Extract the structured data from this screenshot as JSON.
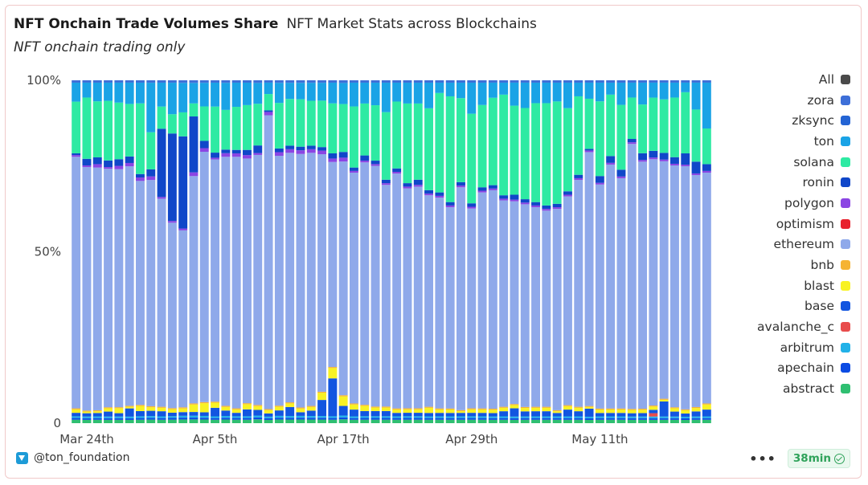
{
  "header": {
    "title": "NFT Onchain Trade Volumes Share",
    "subtitle": "NFT Market Stats across Blockchains",
    "note": "NFT onchain trading only"
  },
  "footer": {
    "handle": "@ton_foundation",
    "menu": "•••",
    "age": "38min"
  },
  "legend": [
    {
      "label": "All",
      "color": "#4a4a4a"
    },
    {
      "label": "zora",
      "color": "#3d6fd8"
    },
    {
      "label": "zksync",
      "color": "#2464d4"
    },
    {
      "label": "ton",
      "color": "#1aa3e6"
    },
    {
      "label": "solana",
      "color": "#2eeaa3"
    },
    {
      "label": "ronin",
      "color": "#1047c9"
    },
    {
      "label": "polygon",
      "color": "#8b45e3"
    },
    {
      "label": "optimism",
      "color": "#e8212d"
    },
    {
      "label": "ethereum",
      "color": "#8fa9ea"
    },
    {
      "label": "bnb",
      "color": "#f5b333"
    },
    {
      "label": "blast",
      "color": "#f8f224"
    },
    {
      "label": "base",
      "color": "#1255e0"
    },
    {
      "label": "avalanche_c",
      "color": "#e84c4c"
    },
    {
      "label": "arbitrum",
      "color": "#22b1e8"
    },
    {
      "label": "apechain",
      "color": "#0b4be3"
    },
    {
      "label": "abstract",
      "color": "#2fbf71"
    }
  ],
  "chart_data": {
    "type": "bar",
    "stacked": true,
    "x_start": "2024-03-23",
    "x_step_days": 1,
    "x_ticks": [
      {
        "date": "2024-03-24",
        "label": "Mar 24th"
      },
      {
        "date": "2024-04-05",
        "label": "Apr 5th"
      },
      {
        "date": "2024-04-17",
        "label": "Apr 17th"
      },
      {
        "date": "2024-04-29",
        "label": "Apr 29th"
      },
      {
        "date": "2024-05-11",
        "label": "May 11th"
      }
    ],
    "y_ticks": [
      {
        "value": 0,
        "label": "0"
      },
      {
        "value": 50,
        "label": "50%"
      },
      {
        "value": 100,
        "label": "100%"
      }
    ],
    "ylim": [
      0,
      100
    ],
    "series": [
      {
        "name": "abstract",
        "color": "#2fbf71",
        "values": [
          1.0,
          1.0,
          1.0,
          1.0,
          1.0,
          1.0,
          1.0,
          1.0,
          1.0,
          1.0,
          1.0,
          1.0,
          1.0,
          1.0,
          1.0,
          1.0,
          1.0,
          1.0,
          1.0,
          1.0,
          1.0,
          1.0,
          1.0,
          1.0,
          1.0,
          1.0,
          1.0,
          1.0,
          1.0,
          1.0,
          1.0,
          1.0,
          1.0,
          1.0,
          1.0,
          1.0,
          1.0,
          1.0,
          1.0,
          1.0,
          1.0,
          1.0,
          1.0,
          1.0,
          1.0,
          1.0,
          1.0,
          1.0,
          1.0,
          1.0,
          1.0,
          1.0,
          1.0,
          1.0,
          1.0,
          1.0,
          1.0,
          1.0,
          1.0,
          1.0
        ]
      },
      {
        "name": "apechain",
        "color": "#0b4be3",
        "values": [
          0.5,
          0.5,
          0.5,
          0.5,
          0.5,
          0.5,
          0.5,
          0.5,
          0.5,
          0.5,
          0.5,
          0.5,
          0.5,
          0.5,
          0.5,
          0.5,
          0.5,
          0.5,
          0.5,
          0.5,
          0.5,
          0.5,
          0.5,
          0.5,
          0.5,
          0.5,
          0.5,
          0.5,
          0.5,
          0.5,
          0.5,
          0.5,
          0.5,
          0.5,
          0.5,
          0.5,
          0.5,
          0.5,
          0.5,
          0.5,
          0.5,
          0.5,
          0.5,
          0.5,
          0.5,
          0.5,
          0.5,
          0.5,
          0.5,
          0.5,
          0.5,
          0.5,
          0.5,
          0.5,
          0.5,
          0.5,
          0.5,
          0.5,
          0.5,
          0.5
        ]
      },
      {
        "name": "arbitrum",
        "color": "#22b1e8",
        "values": [
          0.5,
          0.5,
          0.5,
          0.5,
          0.5,
          0.5,
          0.5,
          0.5,
          0.5,
          0.5,
          0.5,
          0.5,
          0.5,
          0.5,
          0.5,
          0.5,
          0.5,
          0.5,
          0.5,
          0.5,
          0.5,
          0.5,
          0.5,
          0.5,
          0.5,
          0.5,
          0.5,
          0.5,
          0.5,
          0.5,
          0.5,
          0.5,
          0.5,
          0.5,
          0.5,
          0.5,
          0.5,
          0.5,
          0.5,
          0.5,
          0.5,
          0.5,
          0.5,
          0.5,
          0.5,
          0.5,
          0.5,
          0.5,
          0.5,
          0.5,
          0.5,
          0.5,
          0.5,
          0.5,
          0.5,
          0.5,
          0.5,
          0.5,
          0.5,
          0.5
        ]
      },
      {
        "name": "avalanche_c",
        "color": "#e84c4c",
        "values": [
          0,
          0,
          0,
          0,
          0,
          0,
          0,
          0,
          0,
          0,
          0,
          0,
          0,
          0,
          0,
          0,
          0,
          0,
          0,
          0,
          0,
          0,
          0,
          0,
          0,
          0,
          0,
          0,
          0,
          0,
          0,
          0,
          0,
          0,
          0,
          0,
          0,
          0,
          0,
          0,
          0,
          0,
          0,
          0,
          0,
          0,
          0,
          0,
          0,
          0,
          0,
          0,
          0,
          0,
          1.0,
          0,
          0,
          0,
          0,
          0
        ]
      },
      {
        "name": "base",
        "color": "#1255e0",
        "values": [
          1.0,
          1.0,
          1.0,
          1.5,
          1.0,
          2.5,
          1.5,
          1.5,
          1.5,
          1.0,
          1.0,
          1.0,
          1.0,
          2.5,
          1.5,
          1.0,
          2.0,
          1.5,
          1.0,
          1.5,
          2.5,
          1.0,
          1.5,
          4.5,
          11.0,
          2.5,
          2.0,
          1.5,
          1.5,
          1.5,
          1.0,
          1.0,
          1.0,
          1.0,
          1.0,
          1.0,
          1.0,
          1.0,
          1.0,
          1.0,
          1.5,
          2.5,
          1.5,
          1.5,
          1.5,
          1.0,
          2.0,
          1.5,
          2.5,
          1.0,
          1.0,
          1.0,
          1.0,
          1.0,
          1.0,
          4.5,
          1.5,
          1.0,
          1.5,
          2.0
        ]
      },
      {
        "name": "blast",
        "color": "#f8f224",
        "values": [
          1.0,
          0.5,
          0.5,
          1.0,
          1.5,
          0.5,
          1.5,
          1.0,
          1.0,
          1.0,
          1.0,
          2.0,
          2.5,
          1.5,
          1.0,
          1.0,
          1.5,
          1.0,
          1.0,
          1.0,
          1.0,
          1.0,
          1.0,
          2.0,
          3.0,
          2.5,
          1.5,
          1.5,
          1.0,
          1.0,
          1.0,
          1.0,
          1.0,
          1.5,
          1.0,
          1.0,
          0.5,
          1.0,
          1.0,
          1.0,
          1.0,
          1.0,
          1.0,
          1.0,
          1.0,
          0.5,
          1.0,
          1.0,
          0.5,
          1.0,
          1.0,
          1.0,
          1.0,
          1.0,
          1.0,
          0.5,
          1.0,
          1.0,
          1.0,
          1.5
        ]
      },
      {
        "name": "bnb",
        "color": "#f5b333",
        "values": [
          0.3,
          0.3,
          0.3,
          0.3,
          0.3,
          0.3,
          0.3,
          0.3,
          0.3,
          0.3,
          0.3,
          0.3,
          0.3,
          0.3,
          0.3,
          0.3,
          0.3,
          0.3,
          0.3,
          0.3,
          0.3,
          0.3,
          0.3,
          0.3,
          0.3,
          0.3,
          0.3,
          0.3,
          0.3,
          0.3,
          0.3,
          0.3,
          0.3,
          0.3,
          0.3,
          0.3,
          0.3,
          0.3,
          0.3,
          0.3,
          0.3,
          0.3,
          0.3,
          0.3,
          0.3,
          0.3,
          0.3,
          0.3,
          0.3,
          0.3,
          0.3,
          0.3,
          0.3,
          0.3,
          0.3,
          0.3,
          0.3,
          0.3,
          0.3,
          0.3
        ]
      },
      {
        "name": "ethereum",
        "color": "#8fa9ea",
        "values": [
          73,
          73.5,
          71.5,
          72,
          71.5,
          73,
          65,
          64,
          61,
          53,
          48,
          61,
          69,
          71,
          69,
          73,
          71,
          66,
          90,
          68.5,
          69.5,
          69.5,
          70.5,
          66.5,
          59.5,
          61,
          68,
          70,
          69.5,
          64,
          68.5,
          63.5,
          64,
          62,
          61.5,
          59,
          65,
          58,
          63,
          65,
          60.5,
          61.5,
          60,
          58.5,
          57.5,
          59,
          61.5,
          66.5,
          78.5,
          66,
          71.5,
          67.5,
          80,
          73.5,
          74,
          71,
          73,
          75.5,
          69,
          68
        ]
      },
      {
        "name": "optimism",
        "color": "#e8212d",
        "values": [
          0,
          0,
          0,
          0,
          0,
          0,
          0,
          0,
          0,
          0,
          0,
          0,
          0,
          0,
          0,
          0,
          0,
          0,
          0,
          0,
          0,
          0,
          0,
          0,
          0,
          0,
          0,
          0,
          0,
          0,
          0,
          0,
          0,
          0,
          0,
          0,
          0,
          0,
          0,
          0,
          0,
          0,
          0,
          0,
          0,
          0,
          0,
          0,
          0,
          0,
          0,
          0,
          0,
          0,
          0,
          0,
          0,
          0,
          0,
          0
        ]
      },
      {
        "name": "polygon",
        "color": "#8b45e3",
        "values": [
          0.5,
          0.5,
          1.0,
          0.5,
          1.0,
          1.0,
          1.0,
          1.0,
          0.5,
          0.5,
          0.5,
          1.0,
          1.0,
          0.5,
          1.0,
          1.0,
          1.0,
          0.5,
          1.0,
          1.0,
          1.0,
          1.0,
          1.0,
          1.0,
          1.0,
          1.0,
          0.5,
          0.5,
          0.5,
          0.5,
          0.5,
          0.5,
          0.5,
          0.5,
          0.5,
          0.5,
          0.5,
          0.5,
          0.5,
          0.5,
          0.5,
          0.5,
          0.5,
          0.5,
          0.5,
          0.5,
          0.5,
          0.5,
          0.5,
          0.5,
          0.5,
          0.5,
          0.5,
          0.5,
          0.5,
          0.5,
          0.5,
          0.5,
          0.5,
          0.5
        ]
      },
      {
        "name": "ronin",
        "color": "#1047c9",
        "values": [
          0.5,
          2.0,
          2.0,
          2.0,
          2.0,
          2.0,
          1.0,
          2.0,
          20,
          25,
          25,
          15,
          2.0,
          1.5,
          1.0,
          1.0,
          1.5,
          2.0,
          0.5,
          1.0,
          1.0,
          1.0,
          1.0,
          1.0,
          1.5,
          1.5,
          1.0,
          1.5,
          1.0,
          1.0,
          1.0,
          1.0,
          1.5,
          1.0,
          1.0,
          1.0,
          1.0,
          1.0,
          1.0,
          1.0,
          1.0,
          1.5,
          1.0,
          1.0,
          1.0,
          1.0,
          1.0,
          1.0,
          0.5,
          2.0,
          2.0,
          2.0,
          1.0,
          2.0,
          2.0,
          2.0,
          2.0,
          3.5,
          3.5,
          2.0
        ]
      },
      {
        "name": "solana",
        "color": "#2eeaa3",
        "values": [
          15,
          18.5,
          16.5,
          18,
          17,
          16,
          20.5,
          10.5,
          6.5,
          5.5,
          6.5,
          3.5,
          9.5,
          13.5,
          11,
          12.5,
          13,
          11,
          5,
          12.5,
          13,
          13,
          12.5,
          13,
          14.5,
          12.5,
          18,
          15,
          16,
          19.5,
          19.5,
          23,
          22,
          24,
          29,
          31,
          24.5,
          26,
          24,
          26,
          29.5,
          27,
          27,
          29,
          30,
          30,
          24.5,
          23,
          15.5,
          22,
          18,
          19,
          12.5,
          14.5,
          16,
          16,
          18,
          19,
          15.5,
          10.5
        ]
      },
      {
        "name": "ton",
        "color": "#1aa3e6",
        "values": [
          5.5,
          4.5,
          5.5,
          5.5,
          6.0,
          6.5,
          6.0,
          14,
          7,
          9,
          8,
          5.5,
          6.5,
          7,
          7.5,
          7,
          6.5,
          5.5,
          3.5,
          5.5,
          4.5,
          4.5,
          5.0,
          5.0,
          6.0,
          5.5,
          7.0,
          6.0,
          6.5,
          8.5,
          5.5,
          6.0,
          6.0,
          7.5,
          3.0,
          4.0,
          4.5,
          9.0,
          6.5,
          4.5,
          3.5,
          7.0,
          7.5,
          6.0,
          6.0,
          5.5,
          7.5,
          4.0,
          5.0,
          5.5,
          3.5,
          6.5,
          4.5,
          6.5,
          4.5,
          5.0,
          4.5,
          3.0,
          8.0,
          13.5
        ]
      },
      {
        "name": "zksync",
        "color": "#2464d4",
        "values": [
          0.2,
          0.2,
          0.2,
          0.2,
          0.2,
          0.2,
          0.2,
          0.2,
          0.2,
          0.2,
          0.2,
          0.2,
          0.2,
          0.2,
          0.2,
          0.2,
          0.2,
          0.2,
          0.2,
          0.2,
          0.2,
          0.2,
          0.2,
          0.2,
          0.2,
          0.2,
          0.2,
          0.2,
          0.2,
          0.2,
          0.2,
          0.2,
          0.2,
          0.2,
          0.2,
          0.2,
          0.2,
          0.2,
          0.2,
          0.2,
          0.2,
          0.2,
          0.2,
          0.2,
          0.2,
          0.2,
          0.2,
          0.2,
          0.2,
          0.2,
          0.2,
          0.2,
          0.2,
          0.2,
          0.2,
          0.2,
          0.2,
          0.2,
          0.2,
          0.2
        ]
      },
      {
        "name": "zora",
        "color": "#3d6fd8",
        "values": [
          0.5,
          0.5,
          0.5,
          0.5,
          0.5,
          0.5,
          0.5,
          0.5,
          0.5,
          0.5,
          0.5,
          0.5,
          0.5,
          0.5,
          0.5,
          0.5,
          0.5,
          0.5,
          0.5,
          0.5,
          0.5,
          0.5,
          0.5,
          0.5,
          0.5,
          0.5,
          0.5,
          0.5,
          0.5,
          0.5,
          0.5,
          0.5,
          0.5,
          0.5,
          0.5,
          0.5,
          0.5,
          0.5,
          0.5,
          0.5,
          0.5,
          0.5,
          0.5,
          0.5,
          0.5,
          0.5,
          0.5,
          0.5,
          0.5,
          0.5,
          0.5,
          0.5,
          0.5,
          0.5,
          0.5,
          0.5,
          0.5,
          0.5,
          0.5,
          0.5
        ]
      }
    ],
    "legend_placement": "right",
    "grid": false
  }
}
